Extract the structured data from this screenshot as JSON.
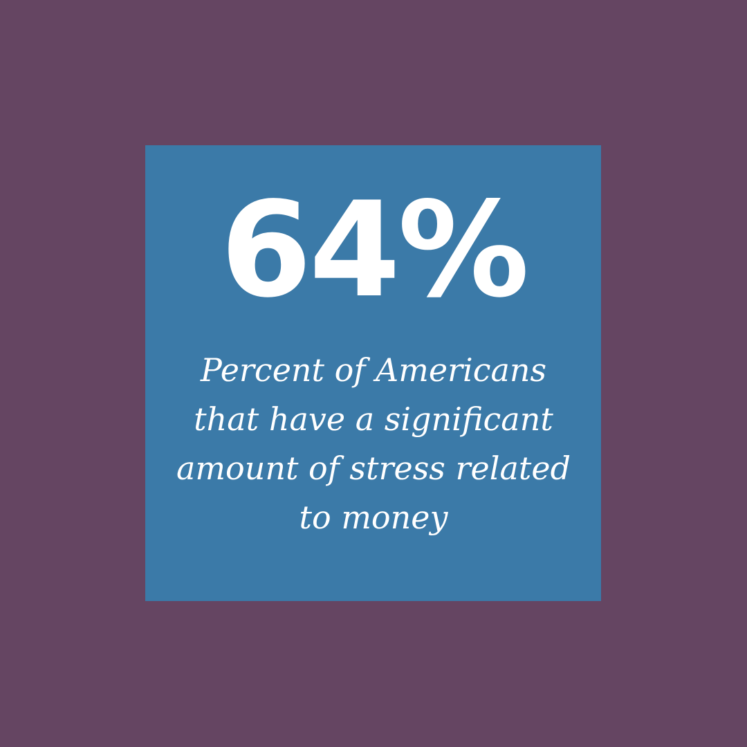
{
  "colors": {
    "background": "#654562",
    "card": "#3b7aa8",
    "text": "#ffffff"
  },
  "stat": {
    "value": "64%"
  },
  "caption": {
    "lines": [
      "Percent of Americans",
      "that have a significant",
      "amount of stress related",
      "to money"
    ]
  }
}
